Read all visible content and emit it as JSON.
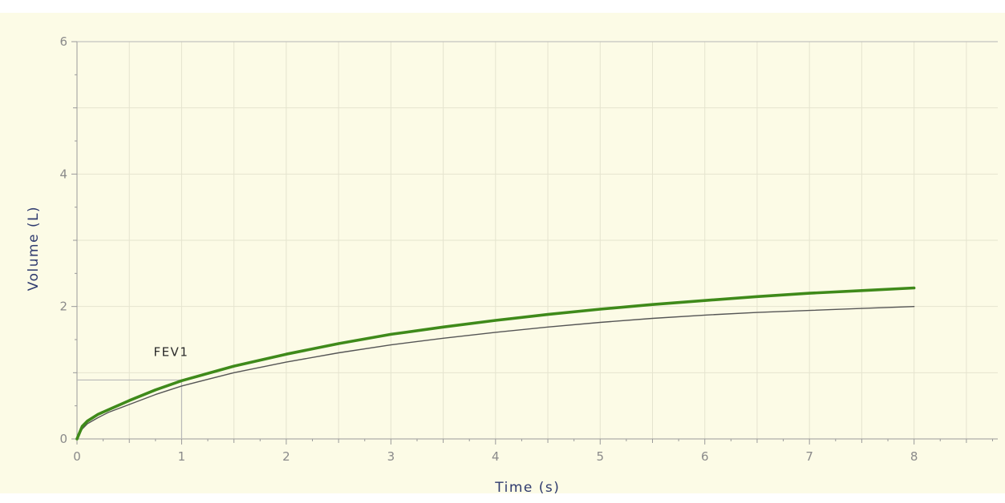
{
  "chart_data": {
    "type": "line",
    "xlabel": "Time (s)",
    "ylabel": "Volume (L)",
    "xlim": [
      0,
      8.8
    ],
    "ylim": [
      0,
      6
    ],
    "x_ticks": [
      0,
      1,
      2,
      3,
      4,
      5,
      6,
      7,
      8
    ],
    "y_ticks": [
      0,
      2,
      4,
      6
    ],
    "grid": true,
    "legend": "none",
    "background_color": "#fcfbe6",
    "grid_color": "#e5e4cf",
    "annotations": [
      {
        "text": "FEV1",
        "x": 1.0,
        "y": 0.89
      }
    ],
    "series": [
      {
        "color": "#3f8a1a",
        "width": "thick",
        "x": [
          0,
          0.05,
          0.1,
          0.2,
          0.3,
          0.5,
          0.75,
          1.0,
          1.5,
          2.0,
          2.5,
          3.0,
          3.5,
          4.0,
          4.5,
          5.0,
          5.5,
          6.0,
          6.5,
          7.0,
          7.5,
          8.0
        ],
        "y": [
          0,
          0.19,
          0.27,
          0.37,
          0.44,
          0.58,
          0.74,
          0.88,
          1.1,
          1.28,
          1.44,
          1.58,
          1.69,
          1.79,
          1.88,
          1.96,
          2.03,
          2.09,
          2.15,
          2.2,
          2.24,
          2.28
        ]
      },
      {
        "color": "#555555",
        "width": "thin",
        "x": [
          0,
          0.05,
          0.1,
          0.2,
          0.3,
          0.5,
          0.75,
          1.0,
          1.5,
          2.0,
          2.5,
          3.0,
          3.5,
          4.0,
          4.5,
          5.0,
          5.5,
          6.0,
          6.5,
          7.0,
          7.5,
          8.0
        ],
        "y": [
          0,
          0.15,
          0.23,
          0.32,
          0.4,
          0.52,
          0.67,
          0.8,
          1.0,
          1.16,
          1.3,
          1.42,
          1.52,
          1.61,
          1.69,
          1.76,
          1.82,
          1.87,
          1.91,
          1.94,
          1.97,
          2.0
        ]
      }
    ]
  }
}
